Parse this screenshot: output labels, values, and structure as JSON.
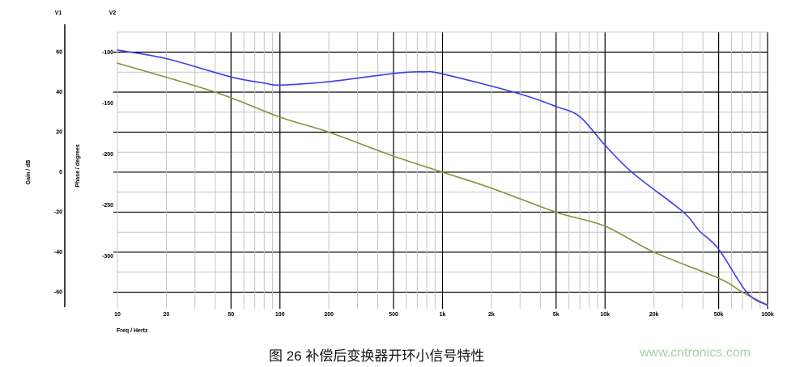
{
  "chart_data": {
    "type": "line",
    "x_scale": "log",
    "xlim": [
      10,
      100000
    ],
    "xlabel": "Freq / Hertz",
    "x_ticks": [
      10,
      20,
      50,
      100,
      200,
      500,
      1000,
      2000,
      5000,
      10000,
      20000,
      50000,
      100000
    ],
    "x_tick_labels": [
      "10",
      "20",
      "50",
      "100",
      "200",
      "500",
      "1k",
      "2k",
      "5k",
      "10k",
      "20k",
      "50k",
      "100k"
    ],
    "y_axes": [
      {
        "id": "V1",
        "label": "Gain / dB",
        "ylim": [
          -66.7,
          69.9
        ],
        "ticks": [
          60,
          40,
          20,
          0,
          -20,
          -40,
          -60
        ],
        "tick_labels": [
          "60",
          "40",
          "20",
          "0",
          "-20",
          "-40",
          "-60"
        ]
      },
      {
        "id": "V2",
        "label": "Phase / degrees",
        "ylim": [
          -348.4,
          -80.2
        ],
        "ticks": [
          -100,
          -150,
          -200,
          -250,
          -300
        ],
        "tick_labels": [
          "-100",
          "-150",
          "-200",
          "-250",
          "-300"
        ]
      }
    ],
    "grid": true,
    "series": [
      {
        "axis": "V1",
        "color": "#8c8c3c",
        "x": [
          10,
          40,
          100,
          200,
          500,
          1000,
          2000,
          5000,
          10000,
          20000,
          50000,
          70000,
          100000
        ],
        "y": [
          54.5,
          40,
          27.5,
          20,
          8,
          0,
          -8,
          -20,
          -27,
          -40,
          -53,
          -60,
          -66.5
        ]
      },
      {
        "axis": "V2",
        "color": "#3c3cf0",
        "x": [
          10,
          20,
          50,
          80,
          100,
          190,
          340,
          540,
          760,
          1000,
          2900,
          5000,
          7000,
          10000,
          15000,
          30000,
          38000,
          50000,
          75000,
          100000
        ],
        "y": [
          -97.6,
          -106,
          -124,
          -130,
          -132,
          -129,
          -124,
          -120,
          -119,
          -121,
          -140,
          -153,
          -163,
          -191,
          -219,
          -256,
          -275,
          -293,
          -336,
          -348
        ]
      }
    ]
  },
  "caption": "图 26 补偿后变换器开环小信号特性",
  "watermark": "www.cntronics.com"
}
